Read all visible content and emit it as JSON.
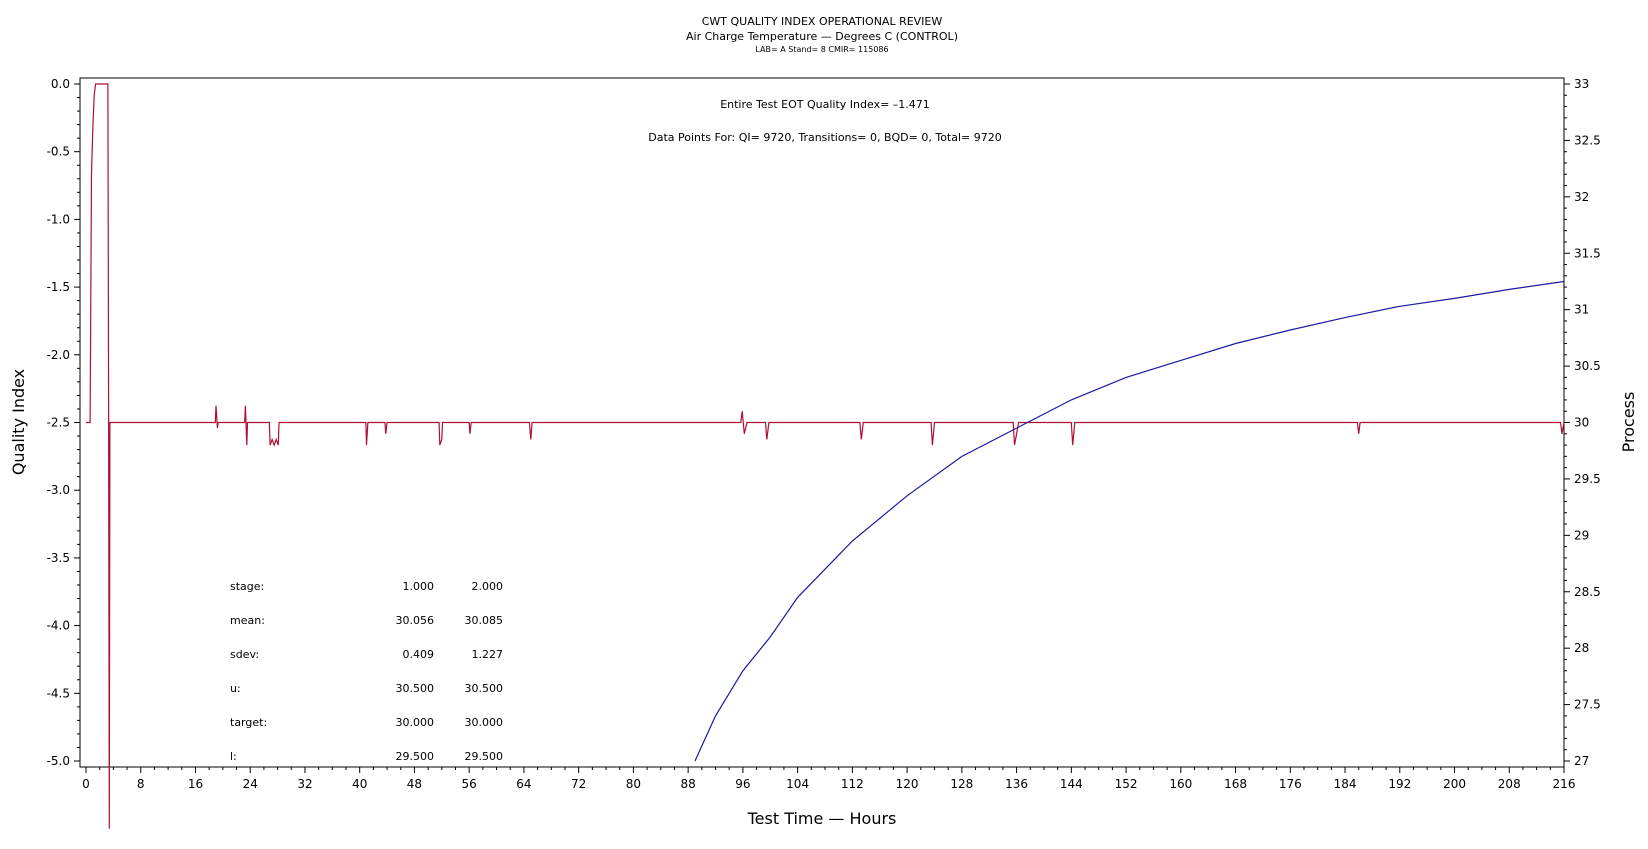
{
  "chart_data": {
    "type": "line",
    "title": "CWT QUALITY INDEX OPERATIONAL REVIEW",
    "subtitle": "Air Charge Temperature — Degrees C (CONTROL)",
    "subtitle2": "LAB= A Stand= 8 CMIR= 115086",
    "xlabel": "Test Time — Hours",
    "ylabel": "Quality Index",
    "y2label": "Process",
    "xlim": [
      0,
      216
    ],
    "ylim": [
      -5.0,
      0.0
    ],
    "y2lim": [
      27,
      33
    ],
    "x_ticks": [
      "0",
      "8",
      "16",
      "24",
      "32",
      "40",
      "48",
      "56",
      "64",
      "72",
      "80",
      "88",
      "96",
      "104",
      "112",
      "120",
      "128",
      "136",
      "144",
      "152",
      "160",
      "168",
      "176",
      "184",
      "192",
      "200",
      "208",
      "216"
    ],
    "y_ticks": [
      "0.0",
      "-0.5",
      "-1.0",
      "-1.5",
      "-2.0",
      "-2.5",
      "-3.0",
      "-3.5",
      "-4.0",
      "-4.5",
      "-5.0"
    ],
    "y2_ticks": [
      "33",
      "32.5",
      "32",
      "31.5",
      "31",
      "30.5",
      "30",
      "29.5",
      "29",
      "28.5",
      "28",
      "27.5",
      "27"
    ],
    "grid": false,
    "annotations": {
      "eot_quality_index": "Entire Test EOT Quality Index=  –1.471",
      "data_points": "Data Points For: QI=  9720, Transitions=     0, BQD=     0, Total=  9720"
    },
    "series": [
      {
        "axis": "right",
        "color": "#b01030",
        "x": [
          0,
          0.6,
          0.8,
          1.0,
          1.2,
          1.4,
          1.6,
          1.8,
          2.0,
          2.6,
          3.2,
          3.3,
          3.4,
          3.5,
          4,
          18.9,
          19.0,
          19.2,
          19.3,
          23.2,
          23.3,
          23.5,
          23.6,
          26.8,
          26.9,
          27.2,
          27.5,
          27.8,
          28.1,
          28.2,
          40.9,
          41.0,
          41.2,
          43.7,
          43.8,
          44.0,
          51.6,
          51.7,
          52.0,
          52.1,
          56.0,
          56.1,
          56.3,
          64.8,
          65.0,
          65.2,
          95.7,
          95.9,
          96.2,
          96.6,
          99.3,
          99.5,
          99.8,
          100.0,
          113.1,
          113.3,
          113.6,
          123.5,
          123.7,
          124.0,
          135.5,
          135.7,
          136.0,
          136.3,
          144.0,
          144.2,
          144.5,
          185.8,
          186.0,
          186.2,
          215.5,
          215.7,
          216
        ],
        "y": [
          30,
          30,
          32.2,
          32.6,
          32.9,
          33,
          33,
          33,
          33,
          33,
          33,
          30.1,
          26.4,
          30,
          30,
          30,
          30.15,
          29.95,
          30,
          30,
          30.15,
          29.8,
          30,
          30,
          29.8,
          29.85,
          29.8,
          29.85,
          29.8,
          30,
          30,
          29.8,
          30,
          30,
          29.9,
          30,
          30,
          29.8,
          29.85,
          30,
          30,
          29.9,
          30,
          30,
          29.85,
          30,
          30,
          30.1,
          29.9,
          30,
          30,
          29.85,
          30,
          30,
          30,
          29.85,
          30,
          30,
          29.8,
          30,
          30,
          29.8,
          29.9,
          30,
          30,
          29.8,
          30,
          30,
          29.9,
          30,
          30,
          29.9,
          30
        ]
      },
      {
        "axis": "right",
        "color": "#1a1aa0",
        "x": [
          89,
          92,
          96,
          100,
          104,
          108,
          112,
          116,
          120,
          128,
          136,
          144,
          152,
          160,
          168,
          176,
          184,
          192,
          200,
          208,
          216
        ],
        "y": [
          27.0,
          27.4,
          27.8,
          28.1,
          28.45,
          28.7,
          28.95,
          29.15,
          29.35,
          29.7,
          29.95,
          30.2,
          30.4,
          30.55,
          30.7,
          30.82,
          30.93,
          31.03,
          31.1,
          31.18,
          31.25
        ]
      }
    ]
  },
  "stats_table": {
    "rows": [
      {
        "label": "stage:",
        "v1": "1.000",
        "v2": "2.000"
      },
      {
        "label": "mean:",
        "v1": "30.056",
        "v2": "30.085"
      },
      {
        "label": "sdev:",
        "v1": "0.409",
        "v2": "1.227"
      },
      {
        "label": "u:",
        "v1": "30.500",
        "v2": "30.500"
      },
      {
        "label": "target:",
        "v1": "30.000",
        "v2": "30.000"
      },
      {
        "label": "l:",
        "v1": "29.500",
        "v2": "29.500"
      }
    ]
  }
}
